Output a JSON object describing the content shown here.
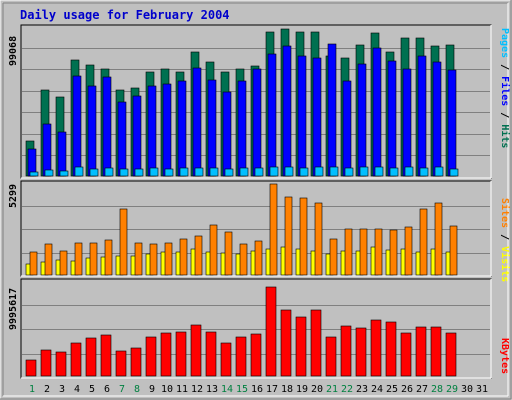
{
  "chart_data": {
    "type": "bar",
    "title": "Daily usage for February 2004",
    "days": [
      "1",
      "2",
      "3",
      "4",
      "5",
      "6",
      "7",
      "8",
      "9",
      "10",
      "11",
      "12",
      "13",
      "14",
      "15",
      "16",
      "17",
      "18",
      "19",
      "20",
      "21",
      "22",
      "23",
      "24",
      "25",
      "26",
      "27",
      "28",
      "29",
      "30",
      "31"
    ],
    "weekend_days": [
      "1",
      "7",
      "8",
      "14",
      "15",
      "21",
      "22",
      "28",
      "29"
    ],
    "panels": {
      "hits": {
        "max_label": "99068",
        "legend": [
          "Pages",
          "Files",
          "Hits"
        ],
        "series": [
          {
            "name": "Hits",
            "color": "#007050",
            "values": [
              26000,
              64000,
              59000,
              87000,
              83000,
              80000,
              64000,
              66000,
              78000,
              80000,
              78000,
              93000,
              85000,
              78000,
              80000,
              82000,
              108000,
              110000,
              108000,
              108000,
              90000,
              88000,
              98000,
              107000,
              93000,
              103000,
              103000,
              97000,
              98000
            ]
          },
          {
            "name": "Files",
            "color": "#0000ff",
            "values": [
              20000,
              39000,
              33000,
              75000,
              67000,
              74000,
              55000,
              60000,
              67000,
              69000,
              71000,
              81000,
              72000,
              63000,
              71000,
              80000,
              91000,
              97000,
              90000,
              88000,
              99000,
              71000,
              84000,
              96000,
              86000,
              80000,
              90000,
              85000,
              79000
            ]
          },
          {
            "name": "Pages",
            "color": "#00bfff",
            "values": [
              3000,
              4500,
              4000,
              7000,
              5500,
              6000,
              5000,
              5200,
              5800,
              5500,
              5900,
              5900,
              6200,
              5600,
              6200,
              6300,
              6600,
              6800,
              6000,
              6400,
              6800,
              5800,
              6500,
              7000,
              5900,
              6500,
              6100,
              6500,
              5600
            ]
          }
        ]
      },
      "visits": {
        "max_label": "5299",
        "legend": [
          "Sites",
          "Visits"
        ],
        "series": [
          {
            "name": "Visits",
            "color": "#ffff00",
            "values": [
              380,
              470,
              550,
              520,
              620,
              640,
              680,
              670,
              740,
              840,
              820,
              930,
              840,
              780,
              760,
              870,
              920,
              990,
              940,
              850,
              770,
              850,
              870,
              990,
              900,
              940,
              840,
              940,
              840
            ]
          },
          {
            "name": "Sites",
            "color": "#ff8000",
            "values": [
              830,
              1110,
              870,
              1140,
              1140,
              1240,
              2350,
              1160,
              1110,
              1140,
              1300,
              1410,
              1790,
              1540,
              1100,
              1220,
              3270,
              2800,
              2750,
              2580,
              1280,
              1640,
              1640,
              1640,
              1630,
              1710,
              2350,
              2580,
              1740
            ]
          }
        ]
      },
      "kbytes": {
        "max_label": "9995617",
        "legend": [
          "KBytes"
        ],
        "series": [
          {
            "name": "KBytes",
            "color": "#ff0000",
            "values": [
              1700000,
              2800000,
              2600000,
              3500000,
              4000000,
              4400000,
              2700000,
              3000000,
              4200000,
              4600000,
              4700000,
              5400000,
              4700000,
              3500000,
              4200000,
              4500000,
              9500000,
              7000000,
              6300000,
              7000000,
              4200000,
              5300000,
              5100000,
              6000000,
              5700000,
              4600000,
              5200000,
              5200000,
              4600000
            ]
          }
        ]
      }
    }
  }
}
